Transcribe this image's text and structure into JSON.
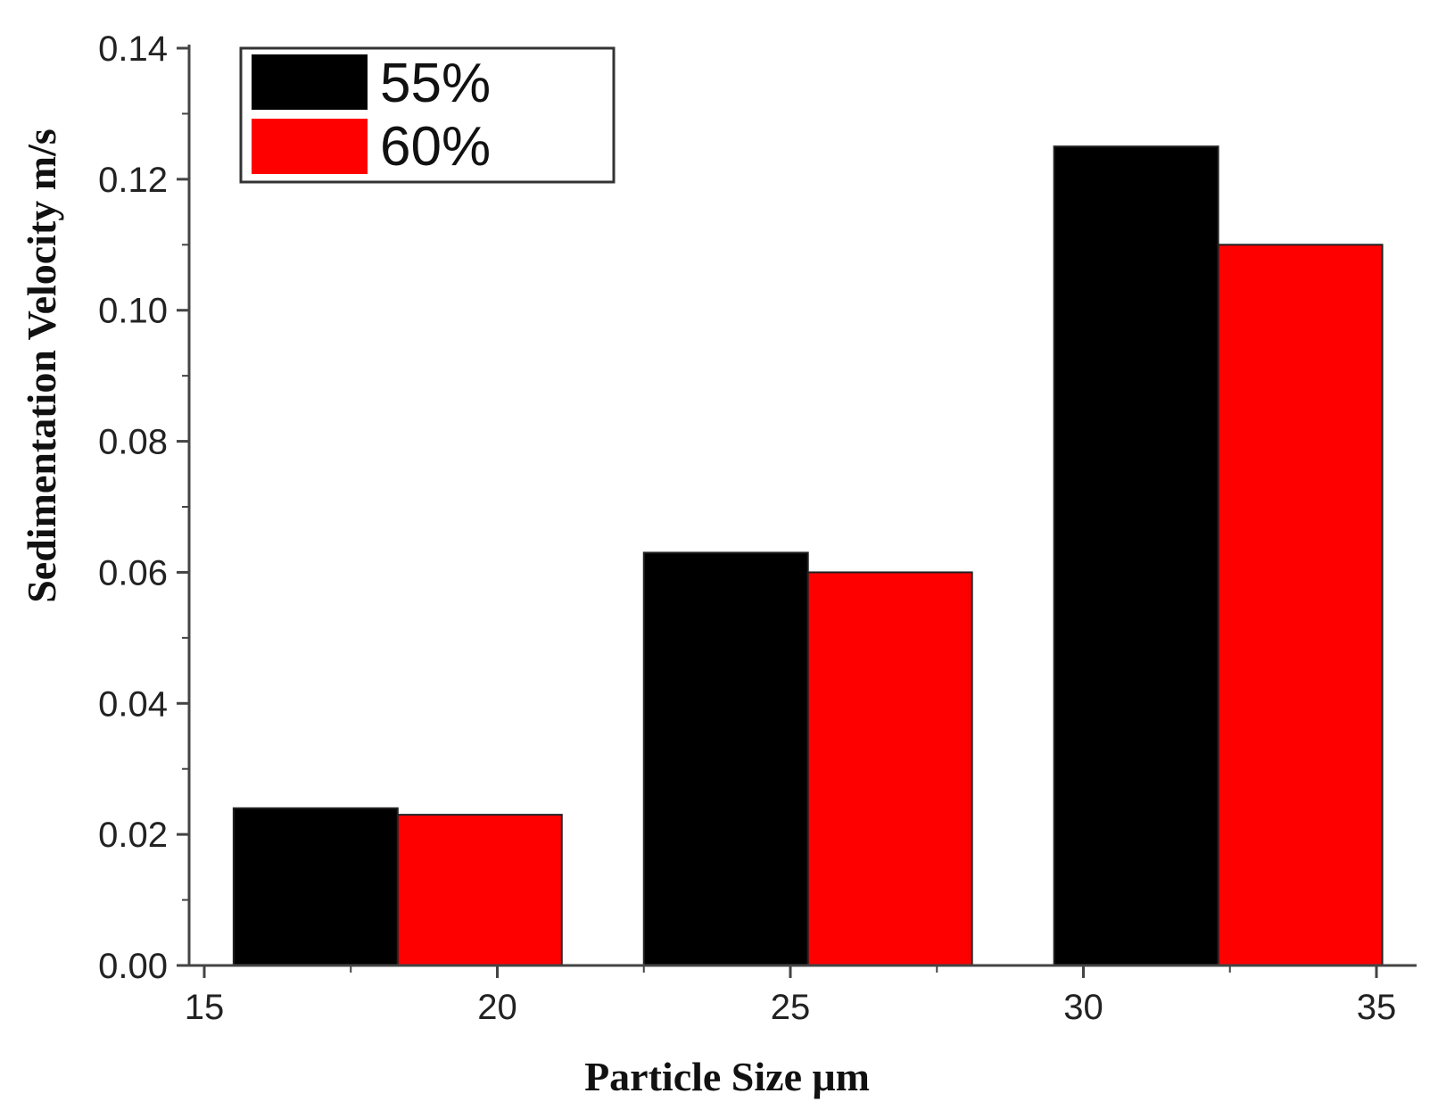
{
  "chart_data": {
    "type": "bar",
    "xlabel": "Particle Size μm",
    "ylabel": "Sedimentation Velocity m/s",
    "xlim": [
      15,
      35
    ],
    "ylim": [
      0,
      0.14
    ],
    "xticks": [
      "15",
      "20",
      "25",
      "30",
      "35"
    ],
    "yticks": [
      "0.00",
      "0.02",
      "0.04",
      "0.06",
      "0.08",
      "0.10",
      "0.12",
      "0.14"
    ],
    "grid": false,
    "legend_position": "top-left",
    "groups": [
      {
        "x_start": 15.5,
        "x_end": 21.1
      },
      {
        "x_start": 22.5,
        "x_end": 28.1
      },
      {
        "x_start": 29.5,
        "x_end": 35.1
      }
    ],
    "series": [
      {
        "name": "55%",
        "color": "#000000",
        "values": [
          0.024,
          0.063,
          0.125
        ]
      },
      {
        "name": "60%",
        "color": "#ff0000",
        "values": [
          0.023,
          0.06,
          0.11
        ]
      }
    ]
  }
}
